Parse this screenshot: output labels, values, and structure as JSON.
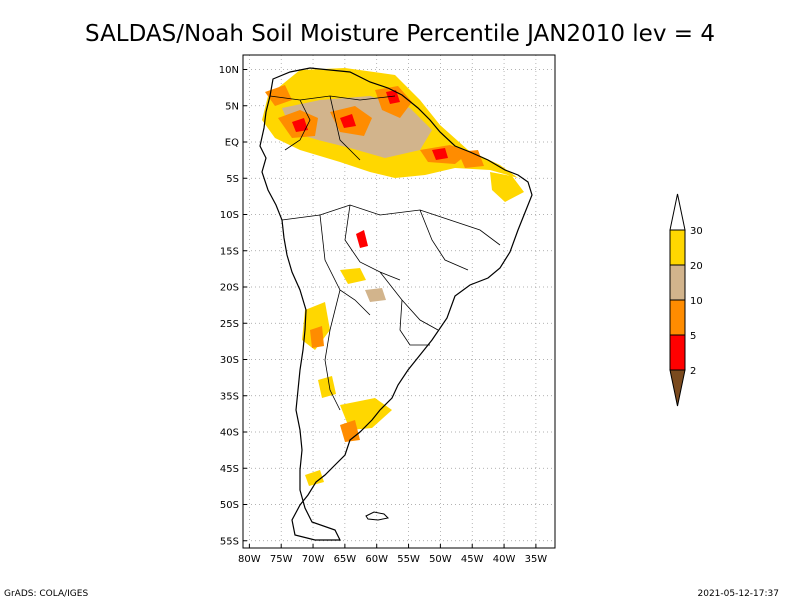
{
  "title": "SALDAS/Noah Soil Moisture Percentile JAN2010 lev = 4",
  "footer_left": "GrADS: COLA/IGES",
  "footer_right": "2021-05-12-17:37",
  "map": {
    "lon_range": [
      -81,
      -32
    ],
    "lat_range": [
      -56,
      12
    ],
    "lat_ticks": [
      {
        "value": 10,
        "label": "10N"
      },
      {
        "value": 5,
        "label": "5N"
      },
      {
        "value": 0,
        "label": "EQ"
      },
      {
        "value": -5,
        "label": "5S"
      },
      {
        "value": -10,
        "label": "10S"
      },
      {
        "value": -15,
        "label": "15S"
      },
      {
        "value": -20,
        "label": "20S"
      },
      {
        "value": -25,
        "label": "25S"
      },
      {
        "value": -30,
        "label": "30S"
      },
      {
        "value": -35,
        "label": "35S"
      },
      {
        "value": -40,
        "label": "40S"
      },
      {
        "value": -45,
        "label": "45S"
      },
      {
        "value": -50,
        "label": "50S"
      },
      {
        "value": -55,
        "label": "55S"
      }
    ],
    "lon_ticks": [
      {
        "value": -80,
        "label": "80W"
      },
      {
        "value": -75,
        "label": "75W"
      },
      {
        "value": -70,
        "label": "70W"
      },
      {
        "value": -65,
        "label": "65W"
      },
      {
        "value": -60,
        "label": "60W"
      },
      {
        "value": -55,
        "label": "55W"
      },
      {
        "value": -50,
        "label": "50W"
      },
      {
        "value": -45,
        "label": "45W"
      },
      {
        "value": -40,
        "label": "40W"
      },
      {
        "value": -35,
        "label": "35W"
      }
    ],
    "grid": "dotted"
  },
  "colorbar": {
    "bins": [
      {
        "color": "#7a4a1e",
        "label": "2"
      },
      {
        "color": "#ff0000",
        "label": "5"
      },
      {
        "color": "#ff8c00",
        "label": "10"
      },
      {
        "color": "#d2b48c",
        "label": "20"
      },
      {
        "color": "#ffd700",
        "label": "30"
      },
      {
        "color": "#ffffff",
        "label": ""
      }
    ]
  },
  "colors": {
    "dark_brown": "#7a4a1e",
    "red": "#ff0000",
    "orange": "#ff8c00",
    "tan": "#d2b48c",
    "gold": "#ffd700"
  }
}
